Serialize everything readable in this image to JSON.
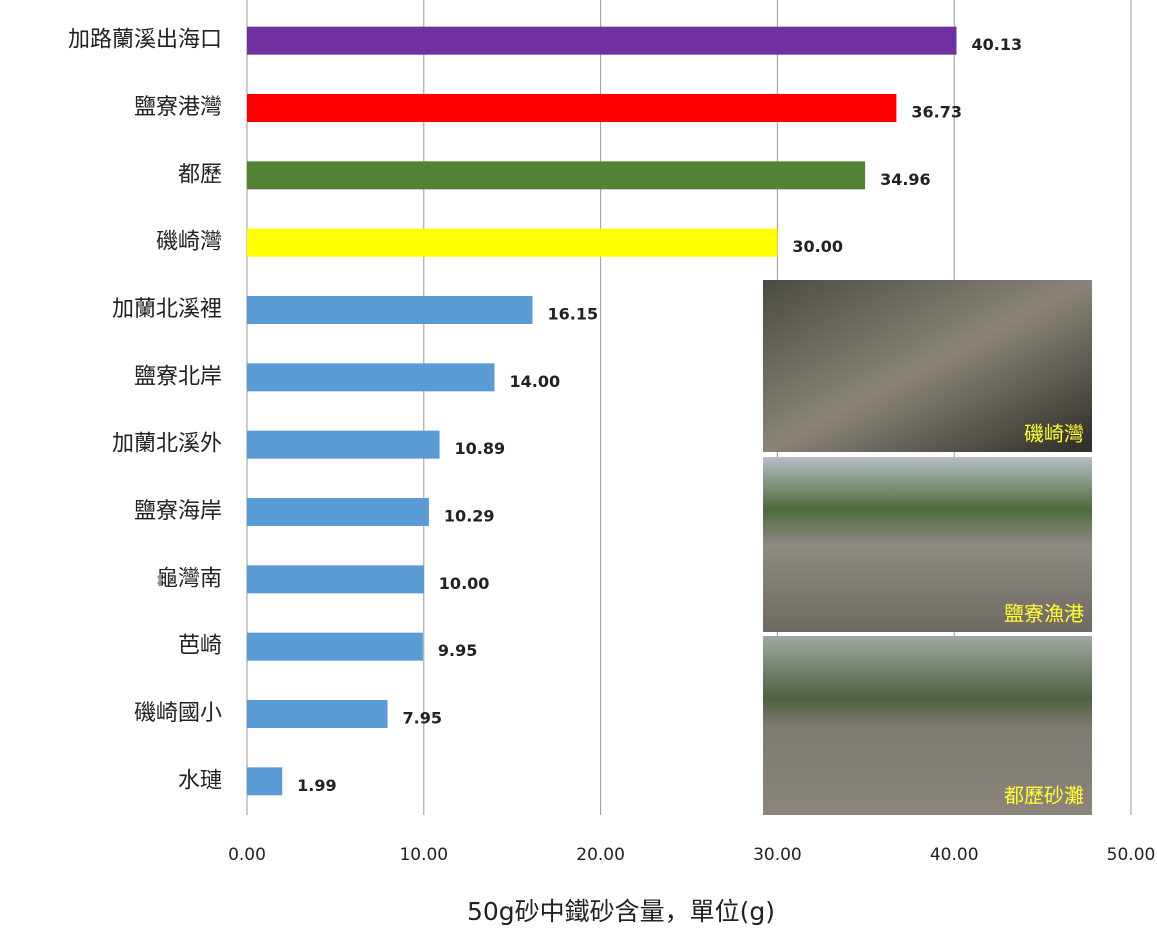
{
  "chart_data": {
    "type": "bar",
    "orientation": "horizontal",
    "x_label": "50g砂中鐵砂含量，單位(g)",
    "categories": [
      "加路蘭溪出海口",
      "鹽寮港灣",
      "都歷",
      "磯崎灣",
      "加蘭北溪裡",
      "鹽寮北岸",
      "加蘭北溪外",
      "鹽寮海岸",
      "龜灣南",
      "芭崎",
      "磯崎國小",
      "水璉"
    ],
    "values": [
      40.13,
      36.73,
      34.96,
      30,
      16.15,
      14,
      10.89,
      10.29,
      10,
      9.95,
      7.95,
      1.99
    ],
    "value_labels": [
      "40.13",
      "36.73",
      "34.96",
      "30.00",
      "16.15",
      "14.00",
      "10.89",
      "10.29",
      "10.00",
      "9.95",
      "7.95",
      "1.99"
    ],
    "colors": [
      "#7030a0",
      "#ff0000",
      "#548235",
      "#ffff00",
      "#5b9bd5",
      "#5b9bd5",
      "#5b9bd5",
      "#5b9bd5",
      "#5b9bd5",
      "#5b9bd5",
      "#5b9bd5",
      "#5b9bd5"
    ],
    "xlim": [
      0,
      50
    ],
    "xticks": [
      {
        "value": 0,
        "label": "0.00"
      },
      {
        "value": 10,
        "label": "10.00"
      },
      {
        "value": 20,
        "label": "20.00"
      },
      {
        "value": 30,
        "label": "30.00"
      },
      {
        "value": 40,
        "label": "40.00"
      },
      {
        "value": 50,
        "label": "50.00"
      }
    ],
    "grid": true,
    "photo_labels": [
      "磯崎灣",
      "鹽寮漁港",
      "都歷砂灘"
    ]
  }
}
